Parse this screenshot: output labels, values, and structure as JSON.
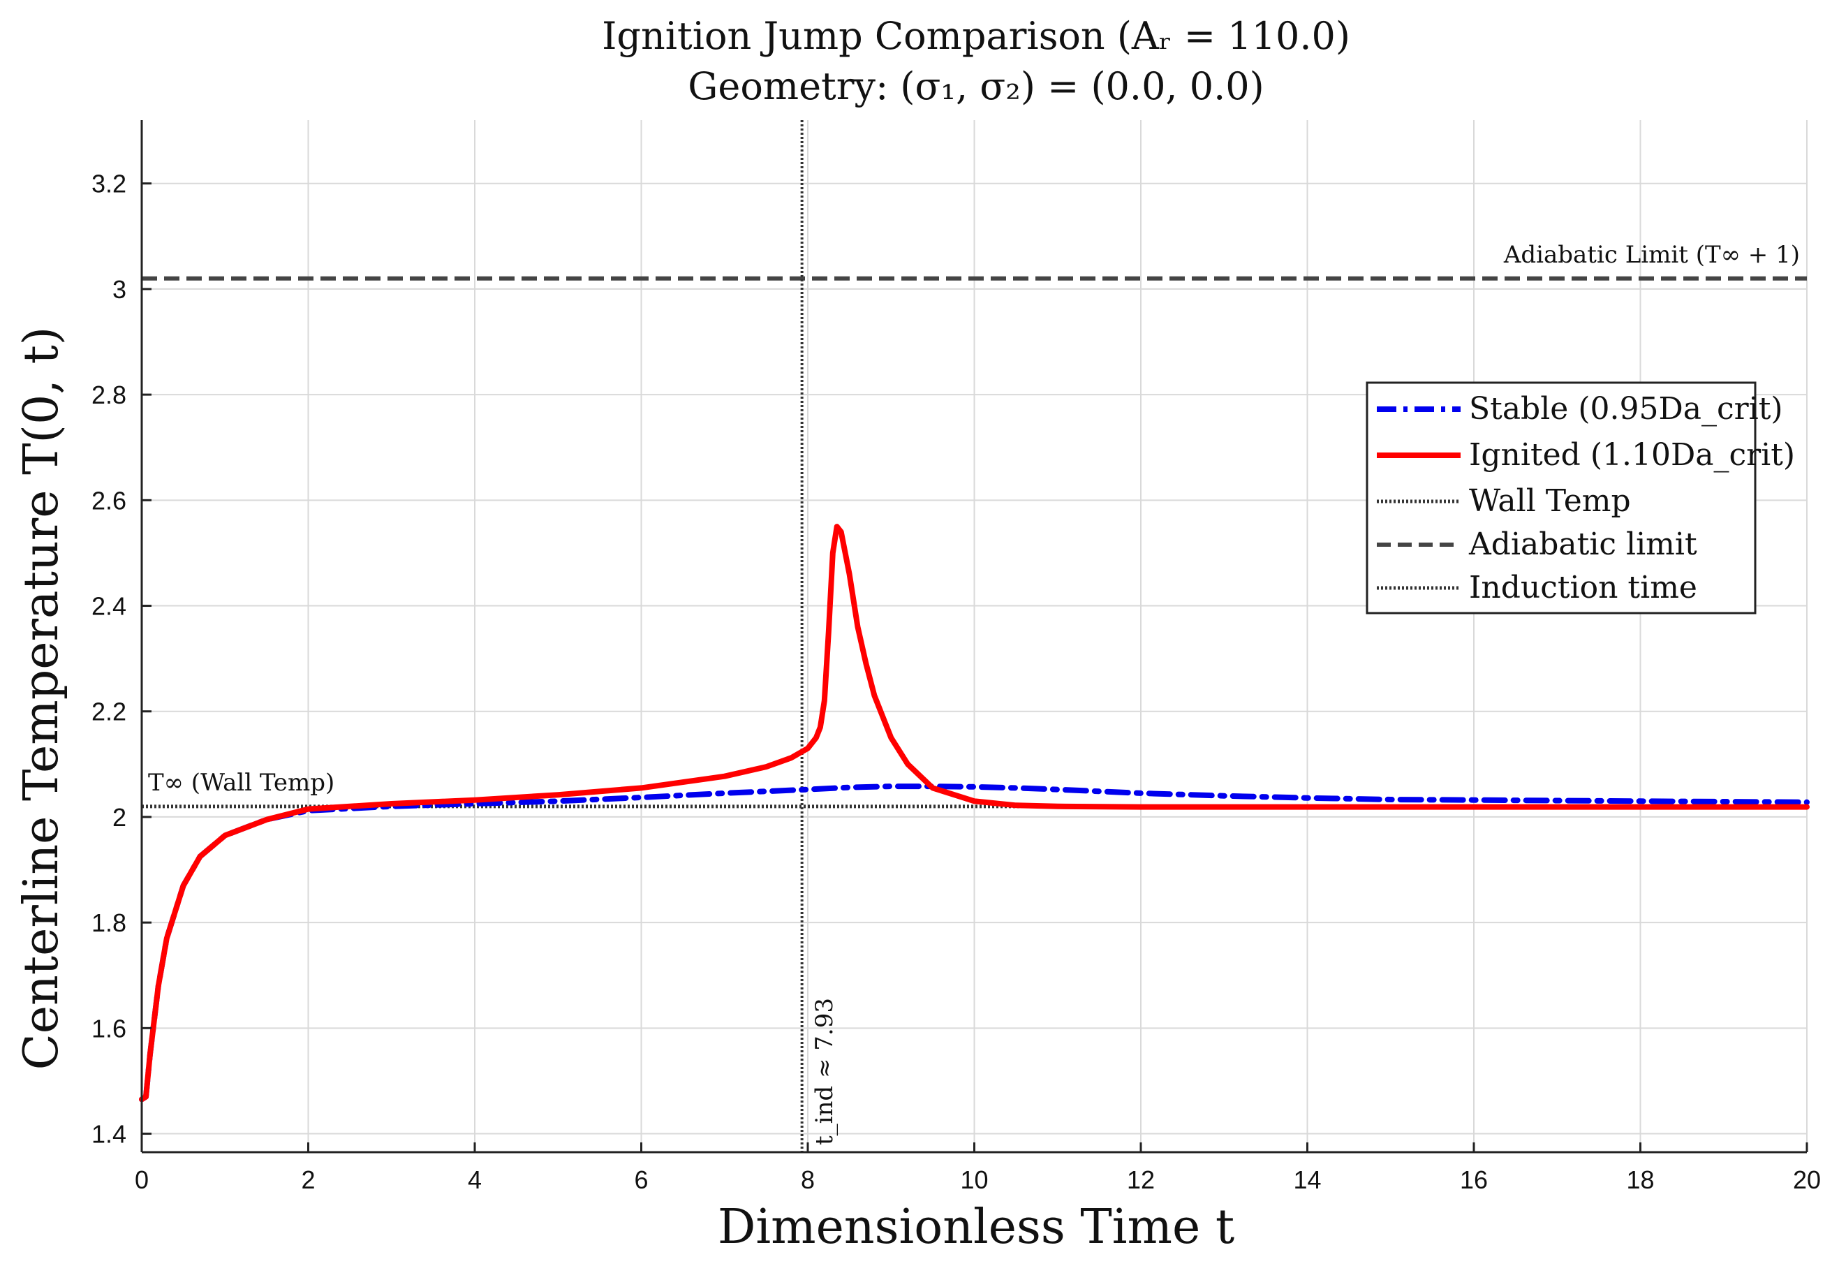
{
  "chart_data": {
    "type": "line",
    "title_line1": "Ignition Jump Comparison (Aᵣ = 110.0)",
    "title_line2": "Geometry: (σ₁, σ₂) = (0.0, 0.0)",
    "xlabel": "Dimensionless Time t",
    "ylabel": "Centerline Temperature T(0, t)",
    "xlim": [
      0,
      20
    ],
    "ylim": [
      1.365,
      3.32
    ],
    "xticks": [
      0,
      2,
      4,
      6,
      8,
      10,
      12,
      14,
      16,
      18,
      20
    ],
    "xtick_labels": [
      "0",
      "2",
      "4",
      "6",
      "8",
      "10",
      "12",
      "14",
      "16",
      "18",
      "20"
    ],
    "yticks": [
      1.4,
      1.6,
      1.8,
      2.0,
      2.2,
      2.4,
      2.6,
      2.8,
      3.0,
      3.2
    ],
    "ytick_labels": [
      "1.4",
      "1.6",
      "1.8",
      "2",
      "2.2",
      "2.4",
      "2.6",
      "2.8",
      "3",
      "3.2"
    ],
    "grid": true,
    "legend_position": "upper-right",
    "series": [
      {
        "name": "Stable (0.95Daₓ)",
        "name_display": "Stable (0.95Da_crit)",
        "color": "#0000ee",
        "style": "dash-dot",
        "x": [
          0,
          0.05,
          0.1,
          0.2,
          0.3,
          0.5,
          0.7,
          1.0,
          1.5,
          2.0,
          3.0,
          4.0,
          5.0,
          6.0,
          7.0,
          8.0,
          8.5,
          9.0,
          9.5,
          10.0,
          10.5,
          11.0,
          12.0,
          13.0,
          14.0,
          15.0,
          16.0,
          17.0,
          18.0,
          19.0,
          20.0
        ],
        "y": [
          1.465,
          1.47,
          1.55,
          1.68,
          1.77,
          1.87,
          1.925,
          1.965,
          1.995,
          2.012,
          2.02,
          2.025,
          2.03,
          2.037,
          2.045,
          2.052,
          2.056,
          2.058,
          2.058,
          2.057,
          2.055,
          2.052,
          2.045,
          2.04,
          2.036,
          2.033,
          2.032,
          2.031,
          2.03,
          2.029,
          2.028
        ]
      },
      {
        "name": "Ignited (1.10Daₓ)",
        "name_display": "Ignited (1.10Da_crit)",
        "color": "#ff0000",
        "style": "solid",
        "x": [
          0,
          0.05,
          0.1,
          0.2,
          0.3,
          0.5,
          0.7,
          1.0,
          1.5,
          2.0,
          3.0,
          4.0,
          5.0,
          6.0,
          7.0,
          7.5,
          7.8,
          8.0,
          8.1,
          8.15,
          8.2,
          8.25,
          8.3,
          8.35,
          8.4,
          8.5,
          8.6,
          8.7,
          8.8,
          9.0,
          9.2,
          9.5,
          10.0,
          10.5,
          11.0,
          12.0,
          14.0,
          16.0,
          18.0,
          20.0
        ],
        "y": [
          1.465,
          1.47,
          1.55,
          1.68,
          1.77,
          1.87,
          1.925,
          1.965,
          1.995,
          2.015,
          2.025,
          2.032,
          2.042,
          2.055,
          2.077,
          2.095,
          2.112,
          2.13,
          2.15,
          2.17,
          2.22,
          2.35,
          2.5,
          2.55,
          2.54,
          2.46,
          2.36,
          2.29,
          2.23,
          2.15,
          2.1,
          2.055,
          2.03,
          2.022,
          2.02,
          2.019,
          2.019,
          2.019,
          2.019,
          2.019
        ]
      }
    ],
    "reference_lines": {
      "wall_temp": {
        "y": 2.02,
        "legend": "Wall Temp",
        "label": "T∞ (Wall Temp)",
        "color": "#333333",
        "style": "dotted"
      },
      "adiabatic": {
        "y": 3.02,
        "legend": "Adiabatic limit",
        "label": "Adiabatic Limit (T∞ + 1)",
        "color": "#444444",
        "style": "dashed"
      },
      "induction": {
        "x": 7.93,
        "legend": "Induction time",
        "label": "t_ind ≈ 7.93",
        "color": "#333333",
        "style": "dotted"
      }
    }
  }
}
